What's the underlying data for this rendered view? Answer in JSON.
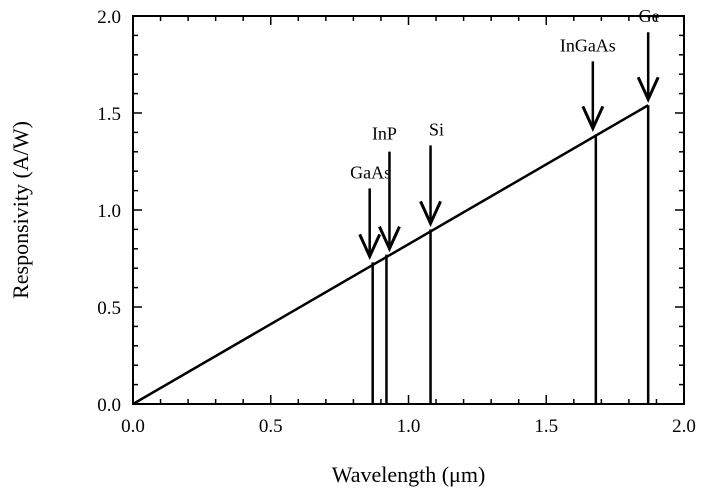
{
  "chart_data": {
    "type": "line",
    "title": "",
    "xlabel": "Wavelength (μm)",
    "ylabel": "Responsivity (A/W)",
    "xlim": [
      0.0,
      2.0
    ],
    "ylim": [
      0.0,
      2.0
    ],
    "x_ticks": [
      "0.0",
      "0.5",
      "1.0",
      "1.5",
      "2.0"
    ],
    "y_ticks": [
      "0.0",
      "0.5",
      "1.0",
      "1.5",
      "2.0"
    ],
    "grid": false,
    "legend": "none",
    "series": [
      {
        "x": [
          0.0,
          1.87
        ],
        "y": [
          0.0,
          1.54
        ]
      }
    ],
    "annotations": [
      {
        "label": "GaAs",
        "x": 0.87,
        "y": 0.73
      },
      {
        "label": "InP",
        "x": 0.92,
        "y": 0.77
      },
      {
        "label": "Si",
        "x": 1.08,
        "y": 0.9
      },
      {
        "label": "InGaAs",
        "x": 1.68,
        "y": 1.39
      },
      {
        "label": "Ge",
        "x": 1.87,
        "y": 1.54
      }
    ]
  }
}
